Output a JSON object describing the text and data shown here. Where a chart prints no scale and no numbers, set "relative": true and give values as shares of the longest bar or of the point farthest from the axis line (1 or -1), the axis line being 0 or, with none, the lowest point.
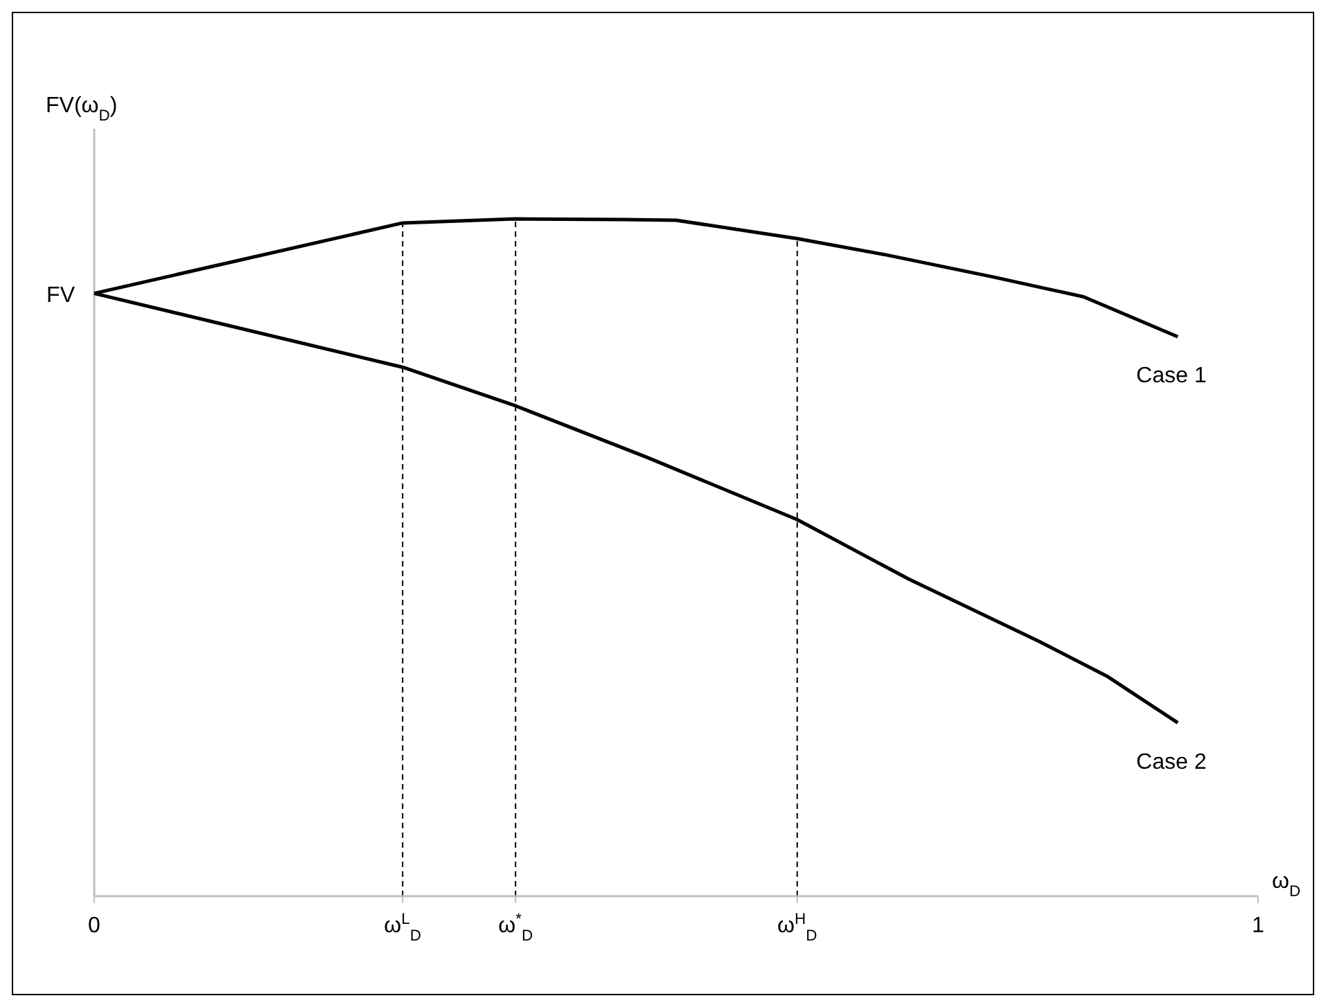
{
  "chart_data": {
    "type": "line",
    "relative": true,
    "xlabel": "ω$_{D}$",
    "ylabel": "FV(ω$_{D}$)",
    "xlim": [
      0,
      1
    ],
    "xticks": [
      0,
      {
        "value": 0.265,
        "label": "ω$^{L}$$_{D}$"
      },
      {
        "value": 0.362,
        "label": "ω$^{*}$$_{D}$"
      },
      {
        "value": 0.604,
        "label": "ω$^{H}$$_{D}$"
      },
      1
    ],
    "series": [
      {
        "name": "Case 1",
        "color": "#000000",
        "x": [
          0,
          0.265,
          0.362,
          0.455,
          0.5,
          0.604,
          0.68,
          0.773,
          0.85,
          0.931
        ],
        "values": [
          0.89,
          0.994,
          1.0,
          0.999,
          0.998,
          0.971,
          0.947,
          0.914,
          0.885,
          0.826
        ]
      },
      {
        "name": "Case 2",
        "color": "#000000",
        "x": [
          0,
          0.265,
          0.362,
          0.475,
          0.604,
          0.7,
          0.812,
          0.87,
          0.931
        ],
        "values": [
          0.89,
          0.781,
          0.724,
          0.648,
          0.556,
          0.468,
          0.376,
          0.325,
          0.256
        ]
      }
    ],
    "ref_lines": [
      {
        "axis": "x",
        "value": 0.265,
        "line_style": "dashed"
      },
      {
        "axis": "x",
        "value": 0.362,
        "line_style": "dashed"
      },
      {
        "axis": "x",
        "value": 0.604,
        "line_style": "dashed"
      }
    ],
    "annotations": [
      {
        "text": "FV",
        "x": 0,
        "y": 0.89
      }
    ],
    "line_style": "solid",
    "marker": "none",
    "grid": false
  }
}
